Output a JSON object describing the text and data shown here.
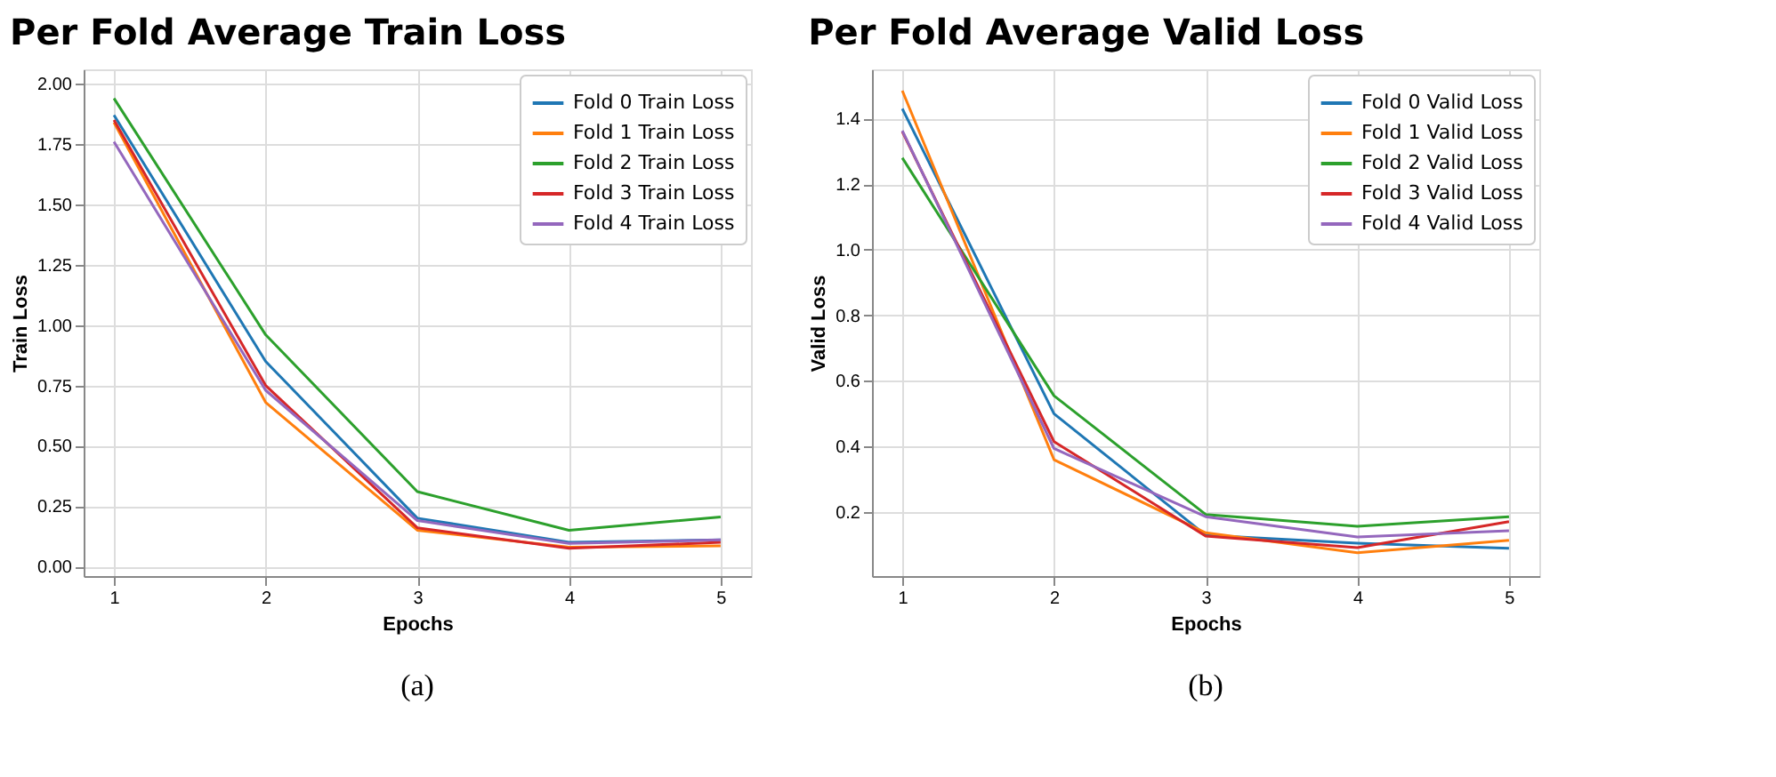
{
  "chart_data": [
    {
      "type": "line",
      "title": "Per Fold Average Train Loss",
      "xlabel": "Epochs",
      "ylabel": "Train Loss",
      "x": [
        1,
        2,
        3,
        4,
        5
      ],
      "xlim": [
        0.8,
        5.2
      ],
      "xticks": [
        1,
        2,
        3,
        4,
        5
      ],
      "ylim": [
        -0.04,
        2.06
      ],
      "yticks": [
        {
          "value": 0,
          "label": "0.00"
        },
        {
          "value": 0.25,
          "label": "0.25"
        },
        {
          "value": 0.5,
          "label": "0.50"
        },
        {
          "value": 0.75,
          "label": "0.75"
        },
        {
          "value": 1,
          "label": "1.00"
        },
        {
          "value": 1.25,
          "label": "1.25"
        },
        {
          "value": 1.5,
          "label": "1.50"
        },
        {
          "value": 1.75,
          "label": "1.75"
        },
        {
          "value": 2,
          "label": "2.00"
        }
      ],
      "grid": true,
      "legend": "top right",
      "line_style": "solid",
      "annotations": [
        "(a)"
      ],
      "series": [
        {
          "name": "Fold 0 Train Loss",
          "color": "#1f77b4",
          "values": [
            1.87,
            0.85,
            0.2,
            0.1,
            0.11
          ]
        },
        {
          "name": "Fold 1 Train Loss",
          "color": "#ff7f0e",
          "values": [
            1.84,
            0.68,
            0.15,
            0.08,
            0.085
          ]
        },
        {
          "name": "Fold 2 Train Loss",
          "color": "#2ca02c",
          "values": [
            1.94,
            0.96,
            0.31,
            0.15,
            0.205
          ]
        },
        {
          "name": "Fold 3 Train Loss",
          "color": "#d62728",
          "values": [
            1.85,
            0.75,
            0.16,
            0.075,
            0.1
          ]
        },
        {
          "name": "Fold 4 Train Loss",
          "color": "#9467bd",
          "values": [
            1.76,
            0.73,
            0.19,
            0.095,
            0.11
          ]
        }
      ]
    },
    {
      "type": "line",
      "title": "Per Fold Average Valid Loss",
      "xlabel": "Epochs",
      "ylabel": "Valid Loss",
      "x": [
        1,
        2,
        3,
        4,
        5
      ],
      "xlim": [
        0.8,
        5.2
      ],
      "xticks": [
        1,
        2,
        3,
        4,
        5
      ],
      "ylim": [
        0.005,
        1.55
      ],
      "yticks": [
        0.2,
        0.4,
        0.6,
        0.8,
        {
          "value": 1,
          "label": "1.0"
        },
        1.2,
        1.4
      ],
      "grid": true,
      "legend": "top right",
      "line_style": "solid",
      "annotations": [
        "(b)"
      ],
      "series": [
        {
          "name": "Fold 0 Valid Loss",
          "color": "#1f77b4",
          "values": [
            1.43,
            0.5,
            0.13,
            0.105,
            0.09
          ]
        },
        {
          "name": "Fold 1 Valid Loss",
          "color": "#ff7f0e",
          "values": [
            1.485,
            0.36,
            0.137,
            0.076,
            0.114
          ]
        },
        {
          "name": "Fold 2 Valid Loss",
          "color": "#2ca02c",
          "values": [
            1.28,
            0.555,
            0.193,
            0.157,
            0.186
          ]
        },
        {
          "name": "Fold 3 Valid Loss",
          "color": "#d62728",
          "values": [
            1.36,
            0.415,
            0.127,
            0.092,
            0.171
          ]
        },
        {
          "name": "Fold 4 Valid Loss",
          "color": "#9467bd",
          "values": [
            1.363,
            0.394,
            0.186,
            0.124,
            0.143
          ]
        }
      ]
    }
  ]
}
